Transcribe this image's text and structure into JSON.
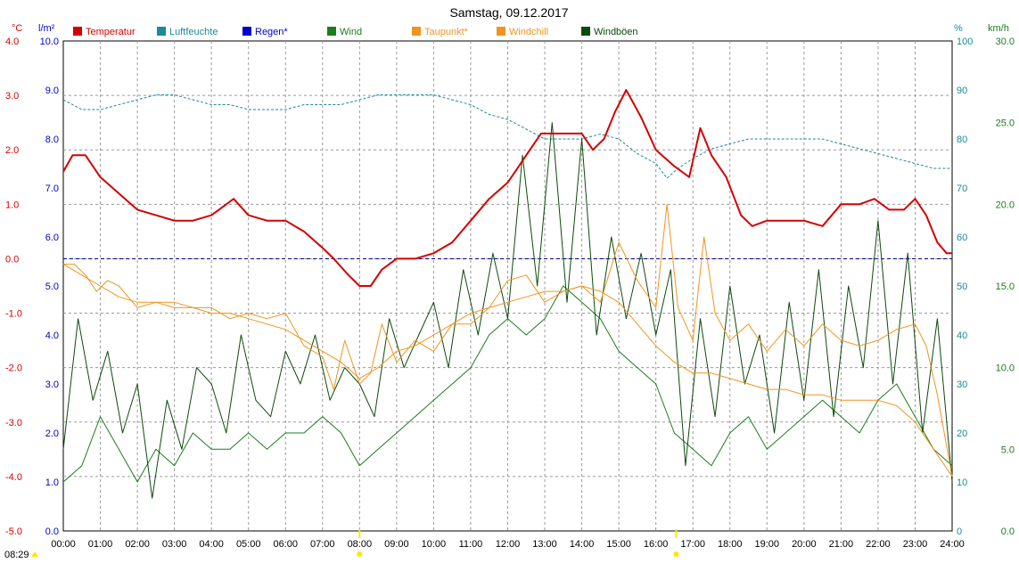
{
  "title": "Samstag, 09.12.2017",
  "time_label": "08:29",
  "colors": {
    "temperature": "#d40000",
    "humidity": "#1b8a9a",
    "rain": "#0000cc",
    "wind": "#1a7f1a",
    "dewpoint": "#f0941e",
    "windchill": "#f0941e",
    "gusts": "#0a4a0a",
    "zero_line": "#00008b",
    "marker": "#ffe600"
  },
  "axes": {
    "temp_unit": "°C",
    "rain_unit": "l/m²",
    "humidity_unit": "%",
    "wind_unit": "km/h",
    "temp_ticks": [
      "4.0",
      "3.0",
      "2.0",
      "1.0",
      "0.0",
      "-1.0",
      "-2.0",
      "-3.0",
      "-4.0",
      "-5.0"
    ],
    "rain_ticks": [
      "10.0",
      "9.0",
      "8.0",
      "7.0",
      "6.0",
      "5.0",
      "4.0",
      "3.0",
      "2.0",
      "1.0",
      "0.0"
    ],
    "humidity_ticks": [
      "100",
      "90",
      "80",
      "70",
      "60",
      "50",
      "40",
      "30",
      "20",
      "10",
      "0"
    ],
    "wind_ticks": [
      "30.0",
      "25.0",
      "20.0",
      "15.0",
      "10.0",
      "5.0",
      "0.0"
    ],
    "x_ticks": [
      "00:00",
      "01:00",
      "02:00",
      "03:00",
      "04:00",
      "05:00",
      "06:00",
      "07:00",
      "08:00",
      "09:00",
      "10:00",
      "11:00",
      "12:00",
      "13:00",
      "14:00",
      "15:00",
      "16:00",
      "17:00",
      "18:00",
      "19:00",
      "20:00",
      "21:00",
      "22:00",
      "23:00",
      "24:00"
    ]
  },
  "legend": [
    {
      "key": "temperature",
      "label": "Temperatur"
    },
    {
      "key": "humidity",
      "label": "Luftfeuchte"
    },
    {
      "key": "rain",
      "label": "Regen*"
    },
    {
      "key": "wind",
      "label": "Wind"
    },
    {
      "key": "dewpoint",
      "label": "Taupunkt*"
    },
    {
      "key": "windchill",
      "label": "Windchill"
    },
    {
      "key": "gusts",
      "label": "Windböen"
    }
  ],
  "chart_data": {
    "type": "line",
    "title": "Samstag, 09.12.2017",
    "x_unit": "hours",
    "xlim": [
      0,
      24
    ],
    "temp_ylim": [
      -5,
      4
    ],
    "rain_ylim": [
      0,
      10
    ],
    "humidity_ylim": [
      0,
      100
    ],
    "wind_ylim": [
      0,
      30
    ],
    "grid": true,
    "legend_position": "top",
    "series": [
      {
        "name": "Temperatur",
        "axis": "temp",
        "x": [
          0,
          0.25,
          0.6,
          1.0,
          1.5,
          2.0,
          2.5,
          3.0,
          3.5,
          4.0,
          4.6,
          5.0,
          5.5,
          6.0,
          6.5,
          7.0,
          7.3,
          7.7,
          8.0,
          8.3,
          8.6,
          9.0,
          9.5,
          10.0,
          10.5,
          11.0,
          11.5,
          12.0,
          12.3,
          12.6,
          12.9,
          13.2,
          13.5,
          14.0,
          14.3,
          14.6,
          14.9,
          15.2,
          15.6,
          16.0,
          16.5,
          16.9,
          17.2,
          17.5,
          17.9,
          18.3,
          18.6,
          19.0,
          19.5,
          20.0,
          20.5,
          21.0,
          21.5,
          21.9,
          22.3,
          22.7,
          23.0,
          23.3,
          23.6,
          23.85,
          24.0
        ],
        "y": [
          1.6,
          1.9,
          1.9,
          1.5,
          1.2,
          0.9,
          0.8,
          0.7,
          0.7,
          0.8,
          1.1,
          0.8,
          0.7,
          0.7,
          0.5,
          0.2,
          0.0,
          -0.3,
          -0.5,
          -0.5,
          -0.2,
          0.0,
          0.0,
          0.1,
          0.3,
          0.7,
          1.1,
          1.4,
          1.7,
          2.0,
          2.3,
          2.3,
          2.3,
          2.3,
          2.0,
          2.2,
          2.7,
          3.1,
          2.6,
          2.0,
          1.7,
          1.5,
          2.4,
          1.9,
          1.5,
          0.8,
          0.6,
          0.7,
          0.7,
          0.7,
          0.6,
          1.0,
          1.0,
          1.1,
          0.9,
          0.9,
          1.1,
          0.8,
          0.3,
          0.1,
          0.1
        ]
      },
      {
        "name": "Luftfeuchte",
        "axis": "humidity",
        "x": [
          0,
          0.5,
          1,
          1.5,
          2,
          2.5,
          3,
          3.5,
          4,
          4.5,
          5,
          5.5,
          6,
          6.5,
          7,
          7.5,
          8,
          8.5,
          9,
          9.5,
          10,
          10.5,
          11,
          11.5,
          12,
          12.5,
          13,
          13.5,
          14,
          14.5,
          15,
          15.5,
          16,
          16.3,
          16.6,
          17,
          17.5,
          18,
          18.5,
          19,
          19.5,
          20,
          20.5,
          21,
          21.5,
          22,
          22.5,
          23,
          23.5,
          24
        ],
        "y": [
          88,
          86,
          86,
          87,
          88,
          89,
          89,
          88,
          87,
          87,
          86,
          86,
          86,
          87,
          87,
          87,
          88,
          89,
          89,
          89,
          89,
          88,
          87,
          85,
          84,
          82,
          80,
          80,
          80,
          81,
          80,
          77,
          75,
          72,
          74,
          76,
          78,
          79,
          80,
          80,
          80,
          80,
          80,
          79,
          78,
          77,
          76,
          75,
          74,
          74
        ]
      },
      {
        "name": "Wind",
        "axis": "wind",
        "x": [
          0,
          0.5,
          1,
          1.5,
          2,
          2.5,
          3,
          3.5,
          4,
          4.5,
          5,
          5.5,
          6,
          6.5,
          7,
          7.5,
          8,
          8.5,
          9,
          9.5,
          10,
          10.5,
          11,
          11.5,
          12,
          12.5,
          13,
          13.5,
          14,
          14.5,
          15,
          15.5,
          16,
          16.5,
          17,
          17.5,
          18,
          18.5,
          19,
          19.5,
          20,
          20.5,
          21,
          21.5,
          22,
          22.5,
          23,
          23.5,
          24
        ],
        "y": [
          3,
          4,
          7,
          5,
          3,
          5,
          4,
          6,
          5,
          5,
          6,
          5,
          6,
          6,
          7,
          6,
          4,
          5,
          6,
          7,
          8,
          9,
          10,
          12,
          13,
          12,
          13,
          15,
          14,
          13,
          11,
          10,
          9,
          6,
          5,
          4,
          6,
          7,
          5,
          6,
          7,
          8,
          7,
          6,
          8,
          9,
          7,
          5,
          4
        ]
      },
      {
        "name": "Windböen",
        "axis": "wind",
        "x": [
          0,
          0.4,
          0.8,
          1.2,
          1.6,
          2,
          2.4,
          2.8,
          3.2,
          3.6,
          4,
          4.4,
          4.8,
          5.2,
          5.6,
          6,
          6.4,
          6.8,
          7.2,
          7.6,
          8,
          8.4,
          8.8,
          9.2,
          9.6,
          10,
          10.4,
          10.8,
          11.2,
          11.6,
          12,
          12.4,
          12.8,
          13.2,
          13.6,
          14,
          14.4,
          14.8,
          15.2,
          15.6,
          16,
          16.4,
          16.8,
          17.2,
          17.6,
          18,
          18.4,
          18.8,
          19.2,
          19.6,
          20,
          20.4,
          20.8,
          21.2,
          21.6,
          22,
          22.4,
          22.8,
          23.2,
          23.6,
          24
        ],
        "y": [
          5,
          13,
          8,
          11,
          6,
          9,
          2,
          8,
          5,
          10,
          9,
          6,
          12,
          8,
          7,
          11,
          9,
          12,
          8,
          10,
          9,
          7,
          13,
          10,
          12,
          14,
          10,
          16,
          12,
          17,
          13,
          23,
          15,
          25,
          14,
          24,
          12,
          18,
          13,
          17,
          12,
          16,
          4,
          13,
          7,
          15,
          9,
          12,
          6,
          14,
          8,
          16,
          7,
          15,
          10,
          19,
          9,
          17,
          6,
          13,
          3
        ]
      },
      {
        "name": "Taupunkt*",
        "axis": "temp",
        "x": [
          0,
          0.5,
          1,
          1.5,
          2,
          2.5,
          3,
          3.5,
          4,
          4.5,
          5,
          5.5,
          6,
          6.5,
          7,
          7.5,
          8,
          8.5,
          9,
          9.5,
          10,
          10.5,
          11,
          11.5,
          12,
          12.5,
          13,
          13.5,
          14,
          14.5,
          15,
          15.5,
          16,
          16.5,
          17,
          17.5,
          18,
          18.5,
          19,
          19.5,
          20,
          20.5,
          21,
          21.5,
          22,
          22.5,
          23,
          23.5,
          24
        ],
        "y": [
          -0.1,
          -0.3,
          -0.5,
          -0.7,
          -0.8,
          -0.8,
          -0.9,
          -0.9,
          -1.0,
          -1.0,
          -1.1,
          -1.2,
          -1.3,
          -1.5,
          -1.7,
          -1.9,
          -2.2,
          -2.0,
          -1.7,
          -1.6,
          -1.4,
          -1.2,
          -1.0,
          -0.9,
          -0.8,
          -0.7,
          -0.6,
          -0.6,
          -0.5,
          -0.6,
          -0.8,
          -1.2,
          -1.6,
          -1.9,
          -2.1,
          -2.1,
          -2.2,
          -2.3,
          -2.4,
          -2.4,
          -2.5,
          -2.5,
          -2.6,
          -2.6,
          -2.6,
          -2.7,
          -3.0,
          -3.5,
          -4.0
        ]
      },
      {
        "name": "Windchill",
        "axis": "temp",
        "x": [
          0,
          0.3,
          0.6,
          0.9,
          1.2,
          1.5,
          2,
          2.5,
          3,
          3.5,
          4,
          4.5,
          5,
          5.5,
          6,
          6.5,
          7,
          7.3,
          7.6,
          8,
          8.3,
          8.6,
          9,
          9.5,
          10,
          10.5,
          11,
          11.5,
          12,
          12.5,
          13,
          13.5,
          14,
          14.5,
          15,
          15.5,
          16,
          16.3,
          16.6,
          17,
          17.3,
          17.6,
          18,
          18.5,
          19,
          19.5,
          20,
          20.5,
          21,
          21.5,
          22,
          22.5,
          23,
          23.3,
          23.6,
          24
        ],
        "y": [
          -0.1,
          -0.1,
          -0.3,
          -0.6,
          -0.4,
          -0.5,
          -0.9,
          -0.8,
          -0.8,
          -0.9,
          -0.9,
          -1.1,
          -1.0,
          -1.1,
          -1.0,
          -1.6,
          -1.8,
          -2.4,
          -1.5,
          -2.3,
          -2.1,
          -1.2,
          -1.9,
          -1.5,
          -1.7,
          -1.2,
          -1.2,
          -0.9,
          -0.4,
          -0.3,
          -0.8,
          -0.6,
          -0.5,
          -0.8,
          0.3,
          -0.4,
          -0.9,
          1.0,
          -0.9,
          -1.5,
          0.4,
          -1.0,
          -1.5,
          -1.2,
          -1.7,
          -1.3,
          -1.6,
          -1.2,
          -1.5,
          -1.6,
          -1.5,
          -1.3,
          -1.2,
          -1.6,
          -2.5,
          -4.0
        ]
      }
    ],
    "markers": [
      {
        "x": 8.0,
        "label": "08:00"
      },
      {
        "x": 16.55,
        "label": "16:33"
      }
    ]
  }
}
